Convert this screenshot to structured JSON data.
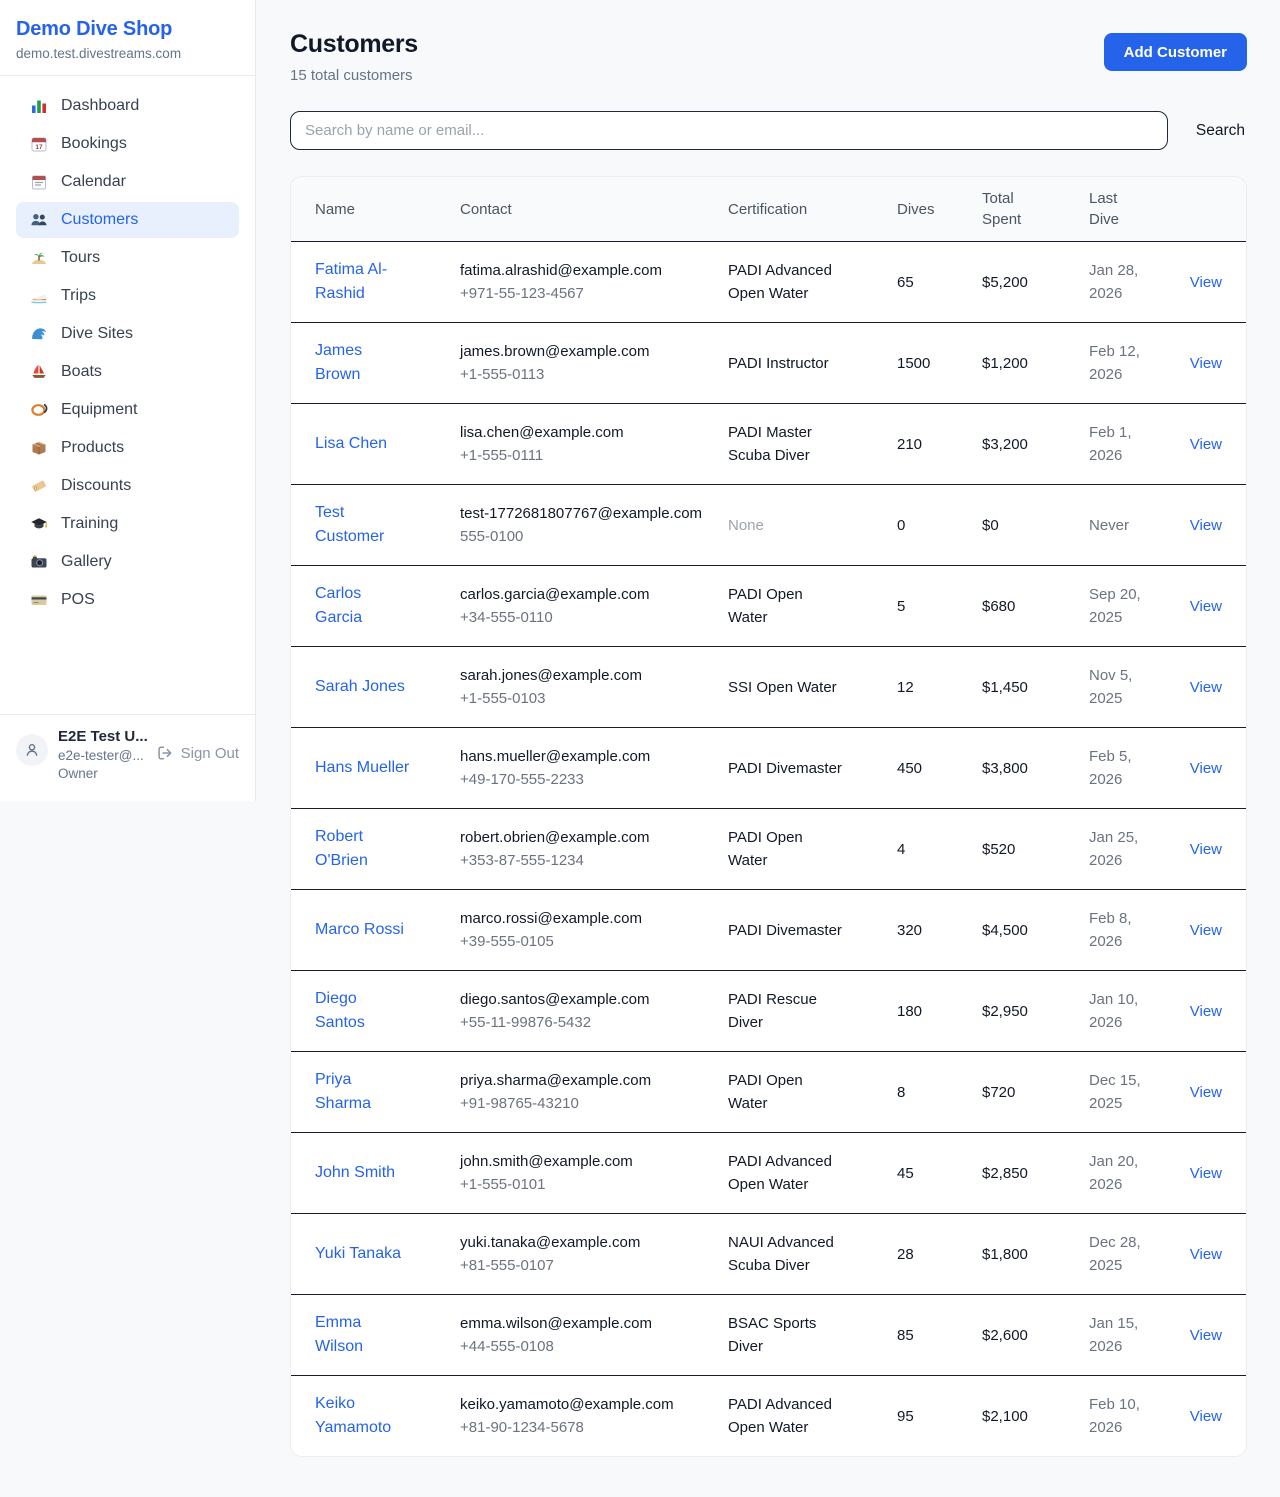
{
  "sidebar": {
    "shop_name": "Demo Dive Shop",
    "shop_domain": "demo.test.divestreams.com",
    "items": [
      {
        "label": "Dashboard",
        "icon": "bar-chart",
        "active": false
      },
      {
        "label": "Bookings",
        "icon": "calendar-date",
        "active": false
      },
      {
        "label": "Calendar",
        "icon": "calendar",
        "active": false
      },
      {
        "label": "Customers",
        "icon": "people",
        "active": true
      },
      {
        "label": "Tours",
        "icon": "island",
        "active": false
      },
      {
        "label": "Trips",
        "icon": "speedboat",
        "active": false
      },
      {
        "label": "Dive Sites",
        "icon": "wave",
        "active": false
      },
      {
        "label": "Boats",
        "icon": "sailboat",
        "active": false
      },
      {
        "label": "Equipment",
        "icon": "dive-mask",
        "active": false
      },
      {
        "label": "Products",
        "icon": "package",
        "active": false
      },
      {
        "label": "Discounts",
        "icon": "tag",
        "active": false
      },
      {
        "label": "Training",
        "icon": "grad-cap",
        "active": false
      },
      {
        "label": "Gallery",
        "icon": "camera",
        "active": false
      },
      {
        "label": "POS",
        "icon": "credit-card",
        "active": false
      }
    ],
    "user": {
      "name": "E2E Test U...",
      "email": "e2e-tester@...",
      "role": "Owner",
      "sign_out_label": "Sign Out"
    }
  },
  "header": {
    "title": "Customers",
    "subtitle": "15 total customers",
    "add_button_label": "Add Customer"
  },
  "search": {
    "placeholder": "Search by name or email...",
    "button_label": "Search"
  },
  "table": {
    "columns": [
      "Name",
      "Contact",
      "Certification",
      "Dives",
      "Total Spent",
      "Last Dive"
    ],
    "view_label": "View",
    "rows": [
      {
        "name": "Fatima Al-Rashid",
        "email": "fatima.alrashid@example.com",
        "phone": "+971-55-123-4567",
        "certification": "PADI Advanced Open Water",
        "dives": "65",
        "total_spent": "$5,200",
        "last_dive": "Jan 28, 2026"
      },
      {
        "name": "James Brown",
        "email": "james.brown@example.com",
        "phone": "+1-555-0113",
        "certification": "PADI Instructor",
        "dives": "1500",
        "total_spent": "$1,200",
        "last_dive": "Feb 12, 2026"
      },
      {
        "name": "Lisa Chen",
        "email": "lisa.chen@example.com",
        "phone": "+1-555-0111",
        "certification": "PADI Master Scuba Diver",
        "dives": "210",
        "total_spent": "$3,200",
        "last_dive": "Feb 1, 2026"
      },
      {
        "name": "Test Customer",
        "email": "test-1772681807767@example.com",
        "phone": "555-0100",
        "certification": "None",
        "dives": "0",
        "total_spent": "$0",
        "last_dive": "Never"
      },
      {
        "name": "Carlos Garcia",
        "email": "carlos.garcia@example.com",
        "phone": "+34-555-0110",
        "certification": "PADI Open Water",
        "dives": "5",
        "total_spent": "$680",
        "last_dive": "Sep 20, 2025"
      },
      {
        "name": "Sarah Jones",
        "email": "sarah.jones@example.com",
        "phone": "+1-555-0103",
        "certification": "SSI Open Water",
        "dives": "12",
        "total_spent": "$1,450",
        "last_dive": "Nov 5, 2025"
      },
      {
        "name": "Hans Mueller",
        "email": "hans.mueller@example.com",
        "phone": "+49-170-555-2233",
        "certification": "PADI Divemaster",
        "dives": "450",
        "total_spent": "$3,800",
        "last_dive": "Feb 5, 2026"
      },
      {
        "name": "Robert O'Brien",
        "email": "robert.obrien@example.com",
        "phone": "+353-87-555-1234",
        "certification": "PADI Open Water",
        "dives": "4",
        "total_spent": "$520",
        "last_dive": "Jan 25, 2026"
      },
      {
        "name": "Marco Rossi",
        "email": "marco.rossi@example.com",
        "phone": "+39-555-0105",
        "certification": "PADI Divemaster",
        "dives": "320",
        "total_spent": "$4,500",
        "last_dive": "Feb 8, 2026"
      },
      {
        "name": "Diego Santos",
        "email": "diego.santos@example.com",
        "phone": "+55-11-99876-5432",
        "certification": "PADI Rescue Diver",
        "dives": "180",
        "total_spent": "$2,950",
        "last_dive": "Jan 10, 2026"
      },
      {
        "name": "Priya Sharma",
        "email": "priya.sharma@example.com",
        "phone": "+91-98765-43210",
        "certification": "PADI Open Water",
        "dives": "8",
        "total_spent": "$720",
        "last_dive": "Dec 15, 2025"
      },
      {
        "name": "John Smith",
        "email": "john.smith@example.com",
        "phone": "+1-555-0101",
        "certification": "PADI Advanced Open Water",
        "dives": "45",
        "total_spent": "$2,850",
        "last_dive": "Jan 20, 2026"
      },
      {
        "name": "Yuki Tanaka",
        "email": "yuki.tanaka@example.com",
        "phone": "+81-555-0107",
        "certification": "NAUI Advanced Scuba Diver",
        "dives": "28",
        "total_spent": "$1,800",
        "last_dive": "Dec 28, 2025"
      },
      {
        "name": "Emma Wilson",
        "email": "emma.wilson@example.com",
        "phone": "+44-555-0108",
        "certification": "BSAC Sports Diver",
        "dives": "85",
        "total_spent": "$2,600",
        "last_dive": "Jan 15, 2026"
      },
      {
        "name": "Keiko Yamamoto",
        "email": "keiko.yamamoto@example.com",
        "phone": "+81-90-1234-5678",
        "certification": "PADI Advanced Open Water",
        "dives": "95",
        "total_spent": "$2,100",
        "last_dive": "Feb 10, 2026"
      }
    ]
  },
  "colors": {
    "accent": "#2563eb",
    "accent_light_bg": "#e8f0fe",
    "page_bg": "#f8f9fa",
    "table_header_bg": "#f8fafc",
    "row_divider": "#161e2e",
    "muted_text": "#64748b",
    "faint_text": "#9ca3af"
  }
}
